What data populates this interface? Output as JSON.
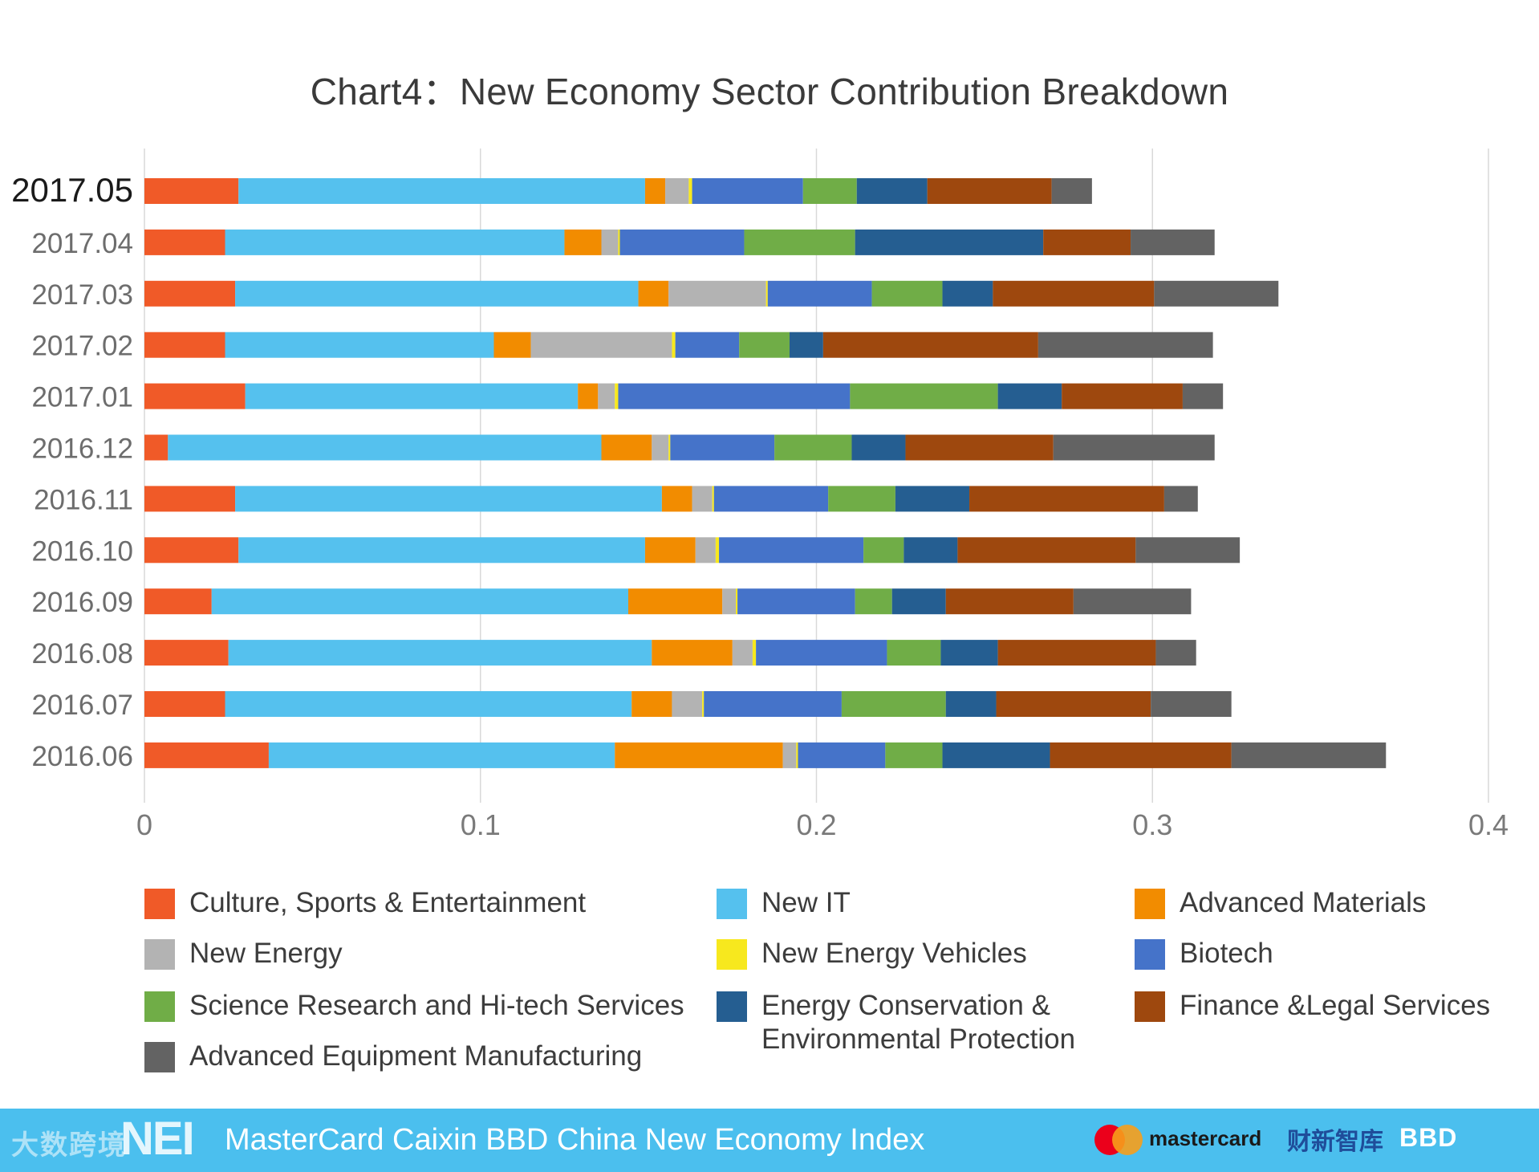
{
  "chart_data": {
    "type": "bar",
    "orientation": "horizontal",
    "stacked": true,
    "title": "Chart4：New Economy Sector Contribution Breakdown",
    "xlabel": "",
    "ylabel": "",
    "xlim": [
      0,
      0.4
    ],
    "xticks": [
      "0",
      "0.1",
      "0.2",
      "0.3",
      "0.4"
    ],
    "grid": true,
    "highlighted_category": "2017.05",
    "categories": [
      "2017.05",
      "2017.04",
      "2017.03",
      "2017.02",
      "2017.01",
      "2016.12",
      "2016.11",
      "2016.10",
      "2016.09",
      "2016.08",
      "2016.07",
      "2016.06"
    ],
    "series": [
      {
        "name": "Culture, Sports & Entertainment",
        "color": "#f05a28",
        "values": [
          0.028,
          0.024,
          0.027,
          0.024,
          0.03,
          0.007,
          0.027,
          0.028,
          0.02,
          0.025,
          0.024,
          0.037
        ]
      },
      {
        "name": "New IT",
        "color": "#55c1ee",
        "values": [
          0.121,
          0.101,
          0.12,
          0.08,
          0.099,
          0.129,
          0.127,
          0.121,
          0.124,
          0.126,
          0.121,
          0.103
        ]
      },
      {
        "name": "Advanced Materials",
        "color": "#f28c00",
        "values": [
          0.006,
          0.011,
          0.009,
          0.011,
          0.006,
          0.015,
          0.009,
          0.015,
          0.028,
          0.024,
          0.012,
          0.05
        ]
      },
      {
        "name": "New Energy",
        "color": "#b3b3b3",
        "values": [
          0.007,
          0.005,
          0.029,
          0.042,
          0.005,
          0.005,
          0.006,
          0.006,
          0.004,
          0.006,
          0.009,
          0.004
        ]
      },
      {
        "name": "New Energy Vehicles",
        "color": "#f7e81e",
        "values": [
          0.001,
          0.0005,
          0.0005,
          0.001,
          0.001,
          0.0005,
          0.0005,
          0.001,
          0.0005,
          0.001,
          0.0005,
          0.0005
        ]
      },
      {
        "name": "Biotech",
        "color": "#4573c9",
        "values": [
          0.033,
          0.037,
          0.031,
          0.019,
          0.069,
          0.031,
          0.034,
          0.043,
          0.035,
          0.039,
          0.041,
          0.026
        ]
      },
      {
        "name": "Science Research and Hi-tech Services",
        "color": "#70ad47",
        "values": [
          0.016,
          0.033,
          0.021,
          0.015,
          0.044,
          0.023,
          0.02,
          0.012,
          0.011,
          0.016,
          0.031,
          0.017
        ]
      },
      {
        "name": "Energy Conservation & Environmental Protection",
        "color": "#255e91",
        "values": [
          0.021,
          0.056,
          0.015,
          0.01,
          0.019,
          0.016,
          0.022,
          0.016,
          0.016,
          0.017,
          0.015,
          0.032
        ]
      },
      {
        "name": "Finance &Legal Services",
        "color": "#9e480e",
        "values": [
          0.037,
          0.026,
          0.048,
          0.064,
          0.036,
          0.044,
          0.058,
          0.053,
          0.038,
          0.047,
          0.046,
          0.054
        ]
      },
      {
        "name": "Advanced Equipment Manufacturing",
        "color": "#636363",
        "values": [
          0.012,
          0.025,
          0.037,
          0.052,
          0.012,
          0.048,
          0.01,
          0.031,
          0.035,
          0.012,
          0.024,
          0.046
        ]
      }
    ]
  },
  "legend": {
    "items": [
      {
        "label": "Culture, Sports & Entertainment",
        "color": "#f05a28"
      },
      {
        "label": "New IT",
        "color": "#55c1ee"
      },
      {
        "label": "Advanced Materials",
        "color": "#f28c00"
      },
      {
        "label": "New Energy",
        "color": "#b3b3b3"
      },
      {
        "label": "New Energy Vehicles",
        "color": "#f7e81e"
      },
      {
        "label": "Biotech",
        "color": "#4573c9"
      },
      {
        "label": "Science Research and Hi-tech Services",
        "color": "#70ad47"
      },
      {
        "label": "Energy Conservation &\nEnvironmental Protection",
        "color": "#255e91"
      },
      {
        "label": "Finance &Legal Services",
        "color": "#9e480e"
      },
      {
        "label": "Advanced Equipment Manufacturing",
        "color": "#636363"
      }
    ]
  },
  "footer": {
    "watermark": "大数跨境",
    "nei_logo": "NEI",
    "text": "MasterCard Caixin BBD China New Economy Index",
    "mastercard_wordmark": "mastercard",
    "caixin_wordmark": "财新智库",
    "bbd_wordmark": "BBD",
    "background_color": "#4bbfee"
  }
}
